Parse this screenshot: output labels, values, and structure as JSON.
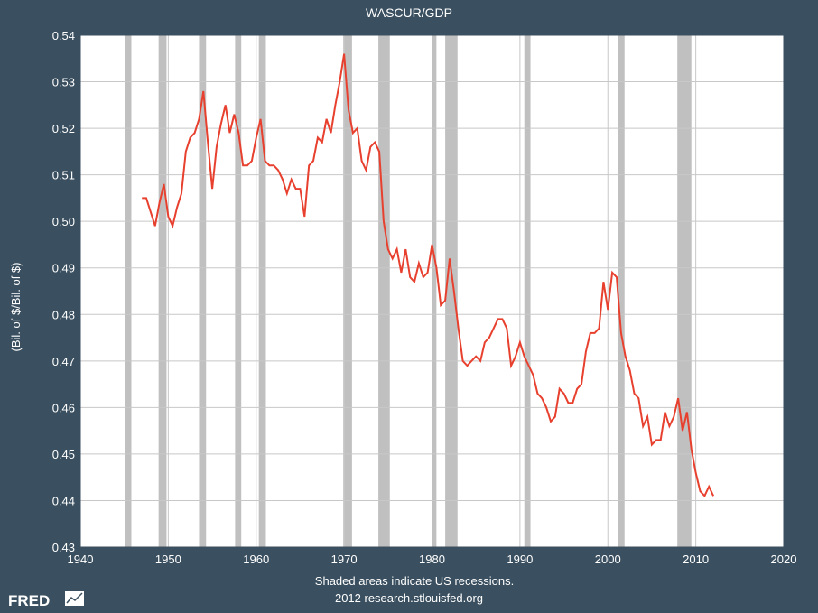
{
  "chart_data": {
    "type": "line",
    "title": "WASCUR/GDP",
    "ylabel": "(Bil. of $/Bil. of $)",
    "xlabel": "",
    "xlim": [
      1940,
      2020
    ],
    "ylim": [
      0.43,
      0.54
    ],
    "xticks": [
      "1940",
      "1950",
      "1960",
      "1970",
      "1980",
      "1990",
      "2000",
      "2010",
      "2020"
    ],
    "yticks": [
      "0.43",
      "0.44",
      "0.45",
      "0.46",
      "0.47",
      "0.48",
      "0.49",
      "0.50",
      "0.51",
      "0.52",
      "0.53",
      "0.54"
    ],
    "grid": true,
    "line_color": "#e8402e",
    "recession_color": "#c0c0c0",
    "recessions": [
      [
        1945.1,
        1945.8
      ],
      [
        1948.9,
        1949.8
      ],
      [
        1953.5,
        1954.3
      ],
      [
        1957.6,
        1958.3
      ],
      [
        1960.3,
        1961.1
      ],
      [
        1969.9,
        1970.9
      ],
      [
        1973.9,
        1975.2
      ],
      [
        1980.0,
        1980.5
      ],
      [
        1981.5,
        1982.9
      ],
      [
        1990.5,
        1991.2
      ],
      [
        2001.2,
        2001.9
      ],
      [
        2007.9,
        2009.5
      ]
    ],
    "series": [
      {
        "x": [
          1947.0,
          1947.5,
          1948.0,
          1948.5,
          1949.0,
          1949.5,
          1950.0,
          1950.5,
          1951.0,
          1951.5,
          1952.0,
          1952.5,
          1953.0,
          1953.5,
          1954.0,
          1954.5,
          1955.0,
          1955.5,
          1956.0,
          1956.5,
          1957.0,
          1957.5,
          1958.0,
          1958.5,
          1959.0,
          1959.5,
          1960.0,
          1960.5,
          1961.0,
          1961.5,
          1962.0,
          1962.5,
          1963.0,
          1963.5,
          1964.0,
          1964.5,
          1965.0,
          1965.5,
          1966.0,
          1966.5,
          1967.0,
          1967.5,
          1968.0,
          1968.5,
          1969.0,
          1969.5,
          1970.0,
          1970.5,
          1971.0,
          1971.5,
          1972.0,
          1972.5,
          1973.0,
          1973.5,
          1974.0,
          1974.5,
          1975.0,
          1975.5,
          1976.0,
          1976.5,
          1977.0,
          1977.5,
          1978.0,
          1978.5,
          1979.0,
          1979.5,
          1980.0,
          1980.5,
          1981.0,
          1981.5,
          1982.0,
          1982.5,
          1983.0,
          1983.5,
          1984.0,
          1984.5,
          1985.0,
          1985.5,
          1986.0,
          1986.5,
          1987.0,
          1987.5,
          1988.0,
          1988.5,
          1989.0,
          1989.5,
          1990.0,
          1990.5,
          1991.0,
          1991.5,
          1992.0,
          1992.5,
          1993.0,
          1993.5,
          1994.0,
          1994.5,
          1995.0,
          1995.5,
          1996.0,
          1996.5,
          1997.0,
          1997.5,
          1998.0,
          1998.5,
          1999.0,
          1999.5,
          2000.0,
          2000.5,
          2001.0,
          2001.5,
          2002.0,
          2002.5,
          2003.0,
          2003.5,
          2004.0,
          2004.5,
          2005.0,
          2005.5,
          2006.0,
          2006.5,
          2007.0,
          2007.5,
          2008.0,
          2008.5,
          2009.0,
          2009.5,
          2010.0,
          2010.5,
          2011.0,
          2011.5,
          2012.0
        ],
        "values": [
          0.505,
          0.505,
          0.502,
          0.499,
          0.504,
          0.508,
          0.501,
          0.499,
          0.503,
          0.506,
          0.515,
          0.518,
          0.519,
          0.522,
          0.528,
          0.517,
          0.507,
          0.516,
          0.521,
          0.525,
          0.519,
          0.523,
          0.519,
          0.512,
          0.512,
          0.513,
          0.518,
          0.522,
          0.513,
          0.512,
          0.512,
          0.511,
          0.509,
          0.506,
          0.509,
          0.507,
          0.507,
          0.501,
          0.512,
          0.513,
          0.518,
          0.517,
          0.522,
          0.519,
          0.525,
          0.53,
          0.536,
          0.524,
          0.519,
          0.52,
          0.513,
          0.511,
          0.516,
          0.517,
          0.515,
          0.5,
          0.494,
          0.492,
          0.494,
          0.489,
          0.494,
          0.488,
          0.487,
          0.491,
          0.488,
          0.489,
          0.495,
          0.49,
          0.482,
          0.483,
          0.492,
          0.485,
          0.477,
          0.47,
          0.469,
          0.47,
          0.471,
          0.47,
          0.474,
          0.475,
          0.477,
          0.479,
          0.479,
          0.477,
          0.469,
          0.471,
          0.474,
          0.471,
          0.469,
          0.467,
          0.463,
          0.462,
          0.46,
          0.457,
          0.458,
          0.464,
          0.463,
          0.461,
          0.461,
          0.464,
          0.465,
          0.472,
          0.476,
          0.476,
          0.477,
          0.487,
          0.481,
          0.489,
          0.488,
          0.476,
          0.471,
          0.468,
          0.463,
          0.462,
          0.456,
          0.458,
          0.452,
          0.453,
          0.453,
          0.459,
          0.456,
          0.458,
          0.462,
          0.455,
          0.459,
          0.451,
          0.446,
          0.442,
          0.441,
          0.443,
          0.441
        ]
      }
    ]
  },
  "footer": {
    "note_line1": "Shaded areas indicate US recessions.",
    "note_line2": "2012 research.stlouisfed.org",
    "logo_text": "FRED"
  }
}
